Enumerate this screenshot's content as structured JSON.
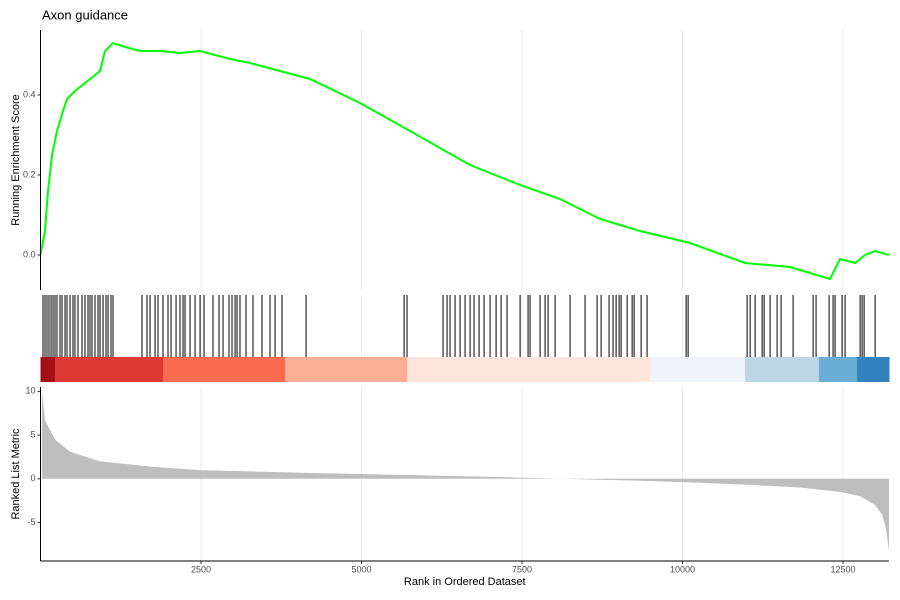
{
  "chart_data": [
    {
      "type": "line",
      "title": "Axon guidance",
      "ylabel": "Running Enrichment Score",
      "color": "#00ff00",
      "grid": true,
      "xlim": [
        0,
        13216
      ],
      "ylim": [
        -0.0875,
        0.5625
      ],
      "yticks": [
        {
          "value": 0,
          "label": "0.0"
        },
        0.2,
        0.4
      ],
      "x": [
        0,
        70,
        117,
        180,
        257,
        350,
        413,
        537,
        615,
        771,
        927,
        1005,
        1130,
        1316,
        1550,
        1861,
        2173,
        2484,
        2952,
        3263,
        3730,
        4197,
        4976,
        5755,
        6690,
        7469,
        8092,
        8715,
        9338,
        10117,
        10973,
        11674,
        12297,
        12453,
        12687,
        12843,
        12999,
        13216
      ],
      "values": [
        0,
        0.06,
        0.16,
        0.25,
        0.31,
        0.36,
        0.39,
        0.41,
        0.42,
        0.44,
        0.46,
        0.51,
        0.53,
        0.52,
        0.51,
        0.51,
        0.505,
        0.51,
        0.49,
        0.48,
        0.46,
        0.44,
        0.38,
        0.31,
        0.225,
        0.175,
        0.14,
        0.09,
        0.06,
        0.03,
        -0.02,
        -0.03,
        -0.06,
        -0.01,
        -0.02,
        0,
        0.01,
        0
      ]
    },
    {
      "type": "rug",
      "color": "#000000",
      "grid": true,
      "xlim": [
        0,
        13216
      ],
      "hits": [
        39,
        70,
        101,
        132,
        164,
        195,
        226,
        257,
        304,
        335,
        382,
        413,
        460,
        506,
        537,
        584,
        646,
        693,
        740,
        771,
        802,
        849,
        896,
        927,
        974,
        1020,
        1052,
        1098,
        1129,
        1581,
        1659,
        1706,
        1784,
        1830,
        1908,
        1986,
        2033,
        2111,
        2173,
        2220,
        2251,
        2329,
        2407,
        2485,
        2547,
        2687,
        2781,
        2843,
        2936,
        2983,
        3030,
        3061,
        3107,
        3201,
        3310,
        3450,
        3575,
        3653,
        3762,
        4136,
        5663,
        5709,
        6270,
        6332,
        6379,
        6457,
        6535,
        6613,
        6691,
        6753,
        6831,
        6909,
        7002,
        7096,
        7174,
        7267,
        7470,
        7594,
        7625,
        7781,
        7859,
        7906,
        8015,
        8248,
        8482,
        8669,
        8732,
        8856,
        8918,
        8965,
        9012,
        9043,
        9137,
        9215,
        9246,
        9355,
        9448,
        10056,
        10087,
        11006,
        11053,
        11131,
        11240,
        11271,
        11364,
        11473,
        11535,
        11722,
        12034,
        12080,
        12283,
        12345,
        12376,
        12485,
        12532,
        12766,
        12797,
        12828,
        13000
      ],
      "band": [
        {
          "start": 0,
          "end": 226,
          "color": "#a50f15"
        },
        {
          "start": 226,
          "end": 1908,
          "color": "#de3a34"
        },
        {
          "start": 1908,
          "end": 3809,
          "color": "#f96b4f"
        },
        {
          "start": 3809,
          "end": 5709,
          "color": "#fcae93"
        },
        {
          "start": 5709,
          "end": 9495,
          "color": "#fee5dc"
        },
        {
          "start": 9495,
          "end": 10973,
          "color": "#eff3fc"
        },
        {
          "start": 10973,
          "end": 12125,
          "color": "#bcd6e5"
        },
        {
          "start": 12125,
          "end": 12717,
          "color": "#6aaed6"
        },
        {
          "start": 12717,
          "end": 13216,
          "color": "#3282be"
        }
      ]
    },
    {
      "type": "area",
      "ylabel": "Ranked List Metric",
      "xlabel": "Rank in Ordered Dataset",
      "color": "#bebebe",
      "grid": true,
      "xlim": [
        0,
        13216
      ],
      "ylim": [
        -9.4,
        10.5
      ],
      "xticks": [
        2500,
        5000,
        7500,
        10000,
        12500
      ],
      "yticks": [
        -5,
        0,
        5,
        10
      ],
      "x": [
        23,
        70,
        226,
        460,
        927,
        1706,
        2485,
        4042,
        5600,
        7158,
        8092,
        9494,
        10273,
        11052,
        11831,
        12454,
        12766,
        13000,
        13109,
        13171,
        13216
      ],
      "values": [
        10,
        6.7,
        4.5,
        3.1,
        2,
        1.4,
        1.0,
        0.7,
        0.45,
        0.2,
        0,
        -0.25,
        -0.45,
        -0.7,
        -1.0,
        -1.5,
        -2,
        -3,
        -4.1,
        -5.8,
        -8.3
      ]
    }
  ]
}
